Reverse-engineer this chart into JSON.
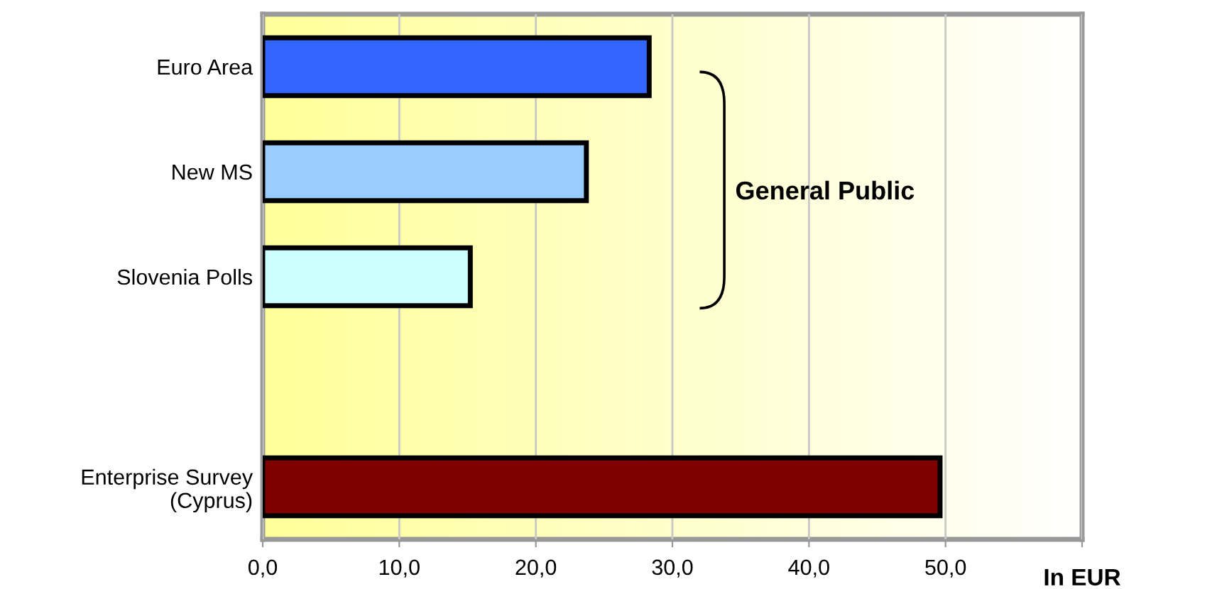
{
  "chart_data": {
    "type": "bar",
    "orientation": "horizontal",
    "categories": [
      "Euro Area",
      "New MS",
      "Slovenia Polls",
      null,
      "Enterprise Survey\n(Cyprus)"
    ],
    "values": [
      28.3,
      23.7,
      15.2,
      null,
      49.6
    ],
    "colors": [
      "#3366ff",
      "#99ccff",
      "#ccffff",
      "#ffffff",
      "#800000"
    ],
    "xlim": [
      0,
      60
    ],
    "xticks": [
      {
        "value": 0,
        "label": "0,0"
      },
      {
        "value": 10,
        "label": "10,0"
      },
      {
        "value": 20,
        "label": "20,0"
      },
      {
        "value": 30,
        "label": "30,0"
      },
      {
        "value": 40,
        "label": "40,0"
      },
      {
        "value": 50,
        "label": "50,0"
      },
      {
        "value": 60,
        "label": null
      }
    ],
    "xlabel": "In EUR",
    "annotations": [
      "General Public"
    ],
    "grid": "x"
  }
}
